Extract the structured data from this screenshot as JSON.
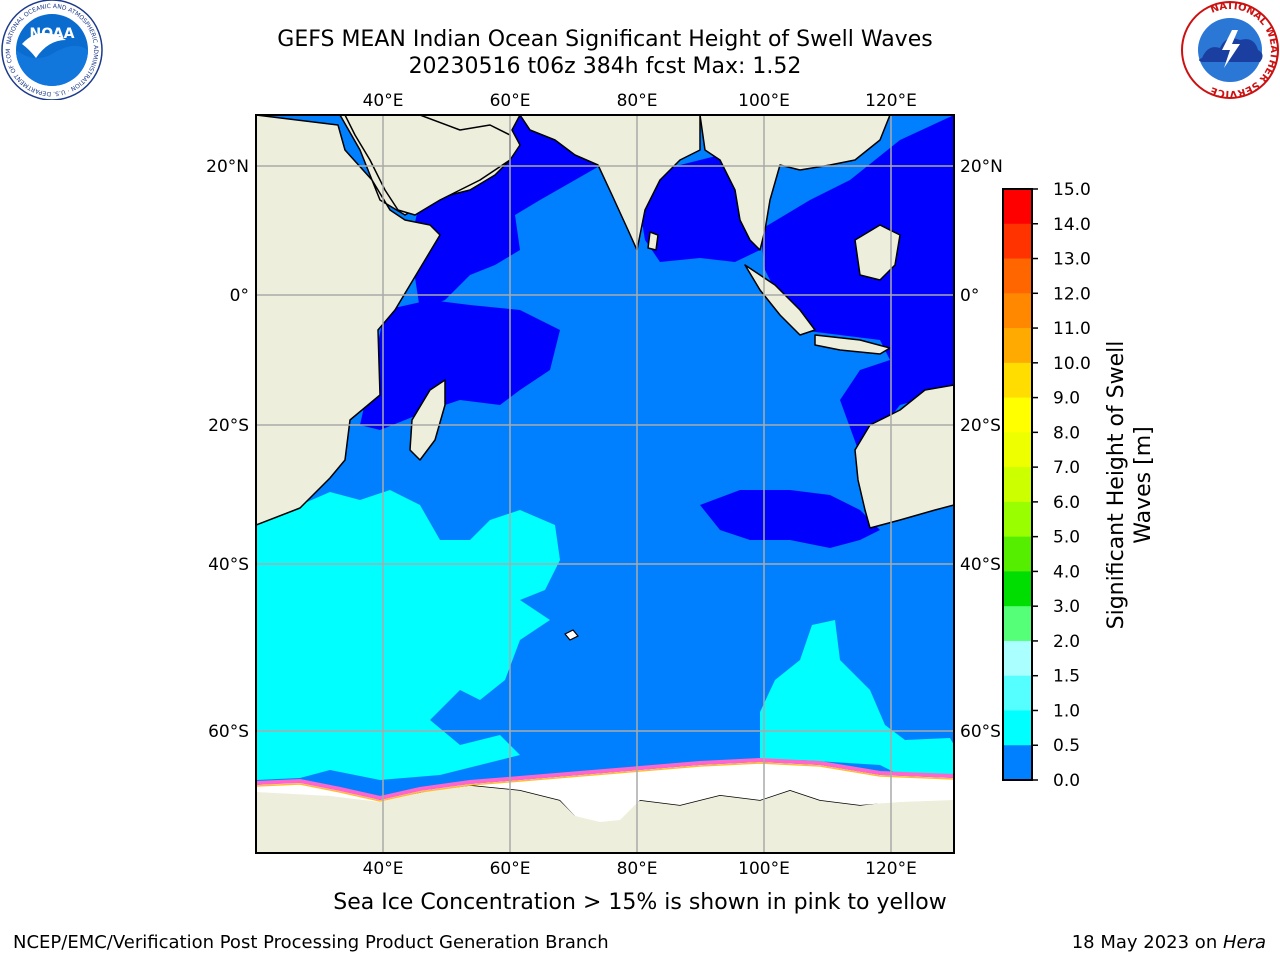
{
  "header": {
    "title_line1": "GEFS MEAN Indian Ocean Significant Height of Swell Waves",
    "title_line2": "20230516 t06z 384h fcst   Max: 1.52"
  },
  "logos": {
    "noaa_text": "NOAA",
    "noaa_ring_text": "NATIONAL OCEANIC AND ATMOSPHERIC ADMINISTRATION · U.S. DEPARTMENT OF COMMERCE",
    "nws_ring_text": "NATIONAL WEATHER SERVICE"
  },
  "map": {
    "lon_labels": [
      "40°E",
      "60°E",
      "80°E",
      "100°E",
      "120°E"
    ],
    "lat_labels": [
      "20°N",
      "0°",
      "20°S",
      "40°S",
      "60°S"
    ],
    "colors": {
      "land": "#eeeedd",
      "ice": "#ffffff",
      "grid": "#aaaaaa",
      "coast": "#000000",
      "band_0": "#0000ff",
      "band_05": "#0080ff",
      "band_10": "#00ffff",
      "ice_edge": "#ff66cc",
      "ice_yellow": "#ffbb33"
    }
  },
  "colorbar": {
    "label_line1": "Significant Height of Swell",
    "label_line2": "Waves [m]",
    "ticks": [
      "15.0",
      "14.0",
      "13.0",
      "12.0",
      "11.0",
      "10.0",
      "9.0",
      "8.0",
      "7.0",
      "6.0",
      "5.0",
      "4.0",
      "3.0",
      "2.0",
      "1.5",
      "1.0",
      "0.5",
      "0.0"
    ],
    "band_colors": [
      "#ff0000",
      "#ff3300",
      "#ff6600",
      "#ff8800",
      "#ffaa00",
      "#ffdd00",
      "#ffff00",
      "#eeff00",
      "#ccff00",
      "#99ff00",
      "#55ee00",
      "#00dd00",
      "#55ff77",
      "#aaffff",
      "#55ffff",
      "#00ffff",
      "#0080ff",
      "#0000ff"
    ]
  },
  "caption": "Sea Ice Concentration > 15% is shown in pink to yellow",
  "footer": {
    "left": "NCEP/EMC/Verification Post Processing Product Generation Branch",
    "right_date": "18 May 2023 on ",
    "right_machine": "Hera"
  }
}
